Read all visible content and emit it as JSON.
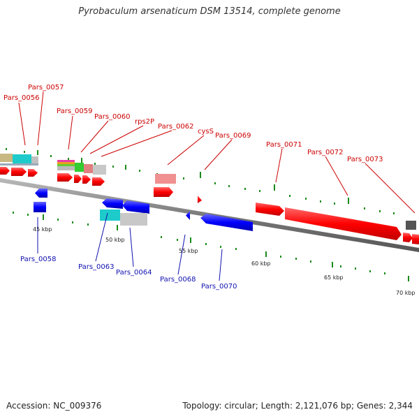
{
  "title": "Pyrobaculum arsenaticum DSM 13514, complete genome",
  "footer": {
    "accession": "Accession: NC_009376",
    "topology": "Topology: circular; Length: 2,121,076 bp; Genes: 2,344"
  },
  "colors": {
    "forward_label": "#cc0000",
    "reverse_label": "#1010b0",
    "backbone": "#808080",
    "tick": "#1a8a1a"
  },
  "scale_labels": [
    "45 kbp",
    "50 kbp",
    "55 kbp",
    "60 kbp",
    "65 kbp",
    "70 kbp"
  ],
  "forward_labels": [
    "Pars_0056",
    "Pars_0057",
    "Pars_0059",
    "Pars_0060",
    "rps2P",
    "Pars_0062",
    "cysS",
    "Pars_0069",
    "Pars_0071",
    "Pars_0072",
    "Pars_0073"
  ],
  "reverse_labels": [
    "Pars_0058",
    "Pars_0063",
    "Pars_0064",
    "Pars_0068",
    "Pars_0070"
  ]
}
